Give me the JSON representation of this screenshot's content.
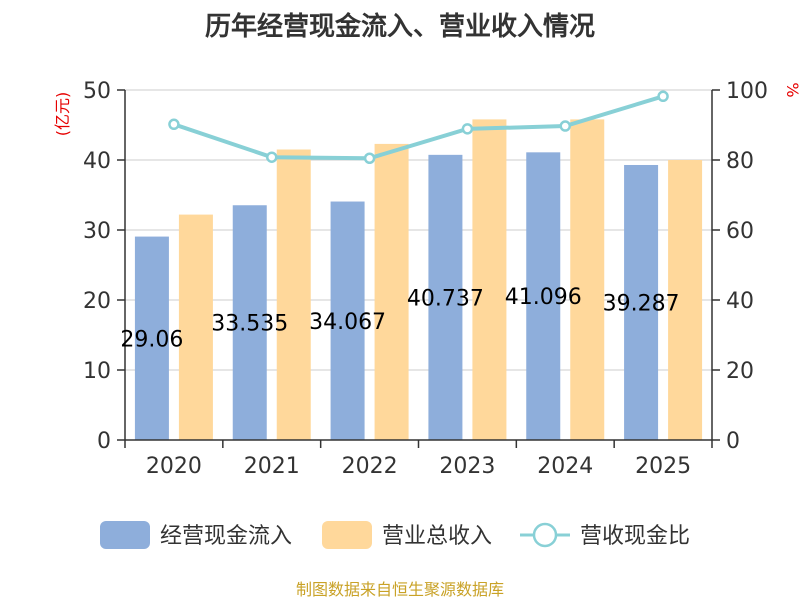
{
  "chart_data": {
    "type": "bar",
    "title": "历年经营现金流入、营业收入情况",
    "categories": [
      "2020",
      "2021",
      "2022",
      "2023",
      "2024",
      "2025"
    ],
    "series": [
      {
        "name": "经营现金流入",
        "kind": "bar",
        "axis": "left",
        "color": "#8eaedb",
        "values": [
          29.06,
          33.535,
          34.067,
          40.737,
          41.096,
          39.287
        ],
        "labels": [
          "29.06",
          "33.535",
          "34.067",
          "40.737",
          "41.096",
          "39.287"
        ]
      },
      {
        "name": "营业总收入",
        "kind": "bar",
        "axis": "left",
        "color": "#ffd89b",
        "values": [
          32.2,
          41.5,
          42.3,
          45.8,
          45.8,
          40.0
        ]
      },
      {
        "name": "营收现金比",
        "kind": "line",
        "axis": "right",
        "color": "#88d0d6",
        "values": [
          90.2,
          80.8,
          80.5,
          88.9,
          89.7,
          98.2
        ]
      }
    ],
    "y_left": {
      "unit": "(亿元)",
      "ylim": [
        0,
        50
      ],
      "ticks": [
        "0",
        "10",
        "20",
        "30",
        "40",
        "50"
      ]
    },
    "y_right": {
      "unit": "%",
      "ylim": [
        0,
        100
      ],
      "ticks": [
        "0",
        "20",
        "40",
        "60",
        "80",
        "100"
      ]
    },
    "grid": true,
    "legend_position": "bottom"
  },
  "source": "制图数据来自恒生聚源数据库"
}
